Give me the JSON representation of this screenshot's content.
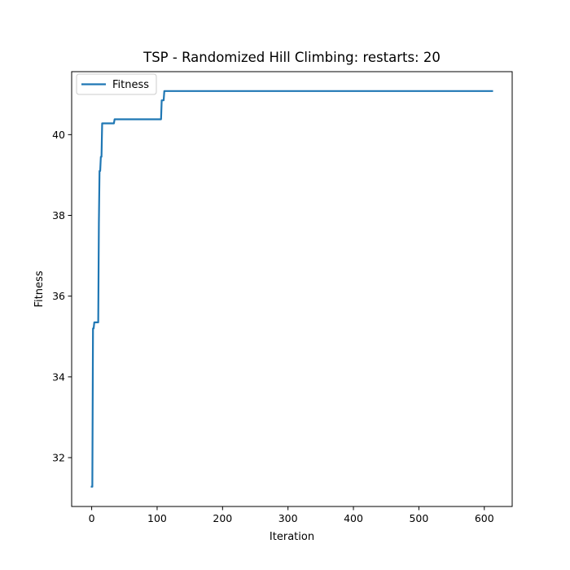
{
  "chart_data": {
    "type": "line",
    "title": "TSP - Randomized Hill Climbing: restarts: 20",
    "xlabel": "Iteration",
    "ylabel": "Fitness",
    "xlim": [
      -30.6,
      642.6
    ],
    "ylim": [
      30.79,
      41.56
    ],
    "xticks": [
      0,
      100,
      200,
      300,
      400,
      500,
      600
    ],
    "yticks": [
      32,
      34,
      36,
      38,
      40
    ],
    "grid": false,
    "legend": {
      "location": "upper left",
      "entries": [
        "Fitness"
      ]
    },
    "series": [
      {
        "name": "Fitness",
        "color": "#1f77b4",
        "x": [
          0,
          1,
          2,
          3,
          4,
          5,
          10,
          11,
          12,
          13,
          14,
          15,
          16,
          17,
          18,
          34,
          35,
          36,
          106,
          107,
          110,
          111,
          612
        ],
        "y": [
          31.28,
          31.28,
          35.2,
          35.2,
          35.35,
          35.35,
          35.35,
          37.8,
          39.1,
          39.1,
          39.45,
          39.45,
          40.28,
          40.28,
          40.28,
          40.28,
          40.38,
          40.38,
          40.38,
          40.85,
          40.85,
          41.08,
          41.08
        ]
      }
    ]
  }
}
